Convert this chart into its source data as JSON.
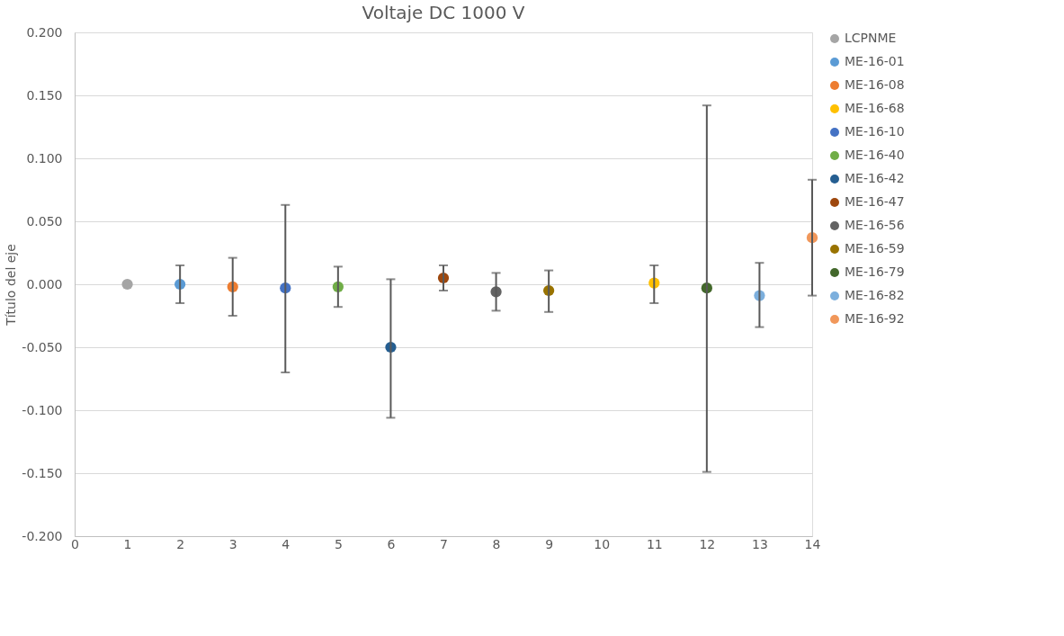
{
  "chart_data": {
    "type": "scatter",
    "title": "Voltaje DC 1000 V",
    "ylabel": "Título del eje",
    "xlim": [
      0,
      14
    ],
    "xticks": [
      0,
      1,
      2,
      3,
      4,
      5,
      6,
      7,
      8,
      9,
      10,
      11,
      12,
      13,
      14
    ],
    "ylim": [
      -0.2,
      0.2
    ],
    "yticks": [
      {
        "value": -0.2,
        "label": "-0.200"
      },
      {
        "value": -0.15,
        "label": "-0.150"
      },
      {
        "value": -0.1,
        "label": "-0.100"
      },
      {
        "value": -0.05,
        "label": "-0.050"
      },
      {
        "value": 0,
        "label": "0.000"
      },
      {
        "value": 0.05,
        "label": "0.050"
      },
      {
        "value": 0.1,
        "label": "0.100"
      },
      {
        "value": 0.15,
        "label": "0.150"
      },
      {
        "value": 0.2,
        "label": "0.200"
      }
    ],
    "grid": "y",
    "legend": "right",
    "marker": "circle",
    "series": [
      {
        "name": "LCPNME",
        "color": "#a5a5a5",
        "x": [
          1
        ],
        "values": [
          0.0
        ]
      },
      {
        "name": "ME-16-01",
        "color": "#5b9bd5",
        "x": [
          2
        ],
        "values": [
          0.0
        ],
        "errors": [
          [
            -0.015,
            0.015
          ]
        ]
      },
      {
        "name": "ME-16-08",
        "color": "#ed7d31",
        "x": [
          3
        ],
        "values": [
          -0.002
        ],
        "errors": [
          [
            -0.025,
            0.021
          ]
        ]
      },
      {
        "name": "ME-16-68",
        "color": "#ffc000",
        "x": [
          11
        ],
        "values": [
          0.001
        ],
        "errors": [
          [
            -0.015,
            0.015
          ]
        ]
      },
      {
        "name": "ME-16-10",
        "color": "#4472c4",
        "x": [
          4
        ],
        "values": [
          -0.003
        ],
        "errors": [
          [
            -0.07,
            0.063
          ]
        ]
      },
      {
        "name": "ME-16-40",
        "color": "#70ad47",
        "x": [
          5
        ],
        "values": [
          -0.002
        ],
        "errors": [
          [
            -0.018,
            0.014
          ]
        ]
      },
      {
        "name": "ME-16-42",
        "color": "#255e91",
        "x": [
          6
        ],
        "values": [
          -0.05
        ],
        "errors": [
          [
            -0.106,
            0.004
          ]
        ]
      },
      {
        "name": "ME-16-47",
        "color": "#9e480e",
        "x": [
          7
        ],
        "values": [
          0.005
        ],
        "errors": [
          [
            -0.005,
            0.015
          ]
        ]
      },
      {
        "name": "ME-16-56",
        "color": "#636363",
        "x": [
          8
        ],
        "values": [
          -0.006
        ],
        "errors": [
          [
            -0.021,
            0.009
          ]
        ]
      },
      {
        "name": "ME-16-59",
        "color": "#997300",
        "x": [
          9
        ],
        "values": [
          -0.005
        ],
        "errors": [
          [
            -0.022,
            0.011
          ]
        ]
      },
      {
        "name": "ME-16-79",
        "color": "#43682b",
        "x": [
          12
        ],
        "values": [
          -0.003
        ],
        "errors": [
          [
            -0.149,
            0.142
          ]
        ]
      },
      {
        "name": "ME-16-82",
        "color": "#7cafdd",
        "x": [
          13
        ],
        "values": [
          -0.009
        ],
        "errors": [
          [
            -0.034,
            0.017
          ]
        ]
      },
      {
        "name": "ME-16-92",
        "color": "#f1975a",
        "x": [
          14
        ],
        "values": [
          0.037
        ],
        "errors": [
          [
            -0.009,
            0.083
          ]
        ]
      }
    ]
  }
}
